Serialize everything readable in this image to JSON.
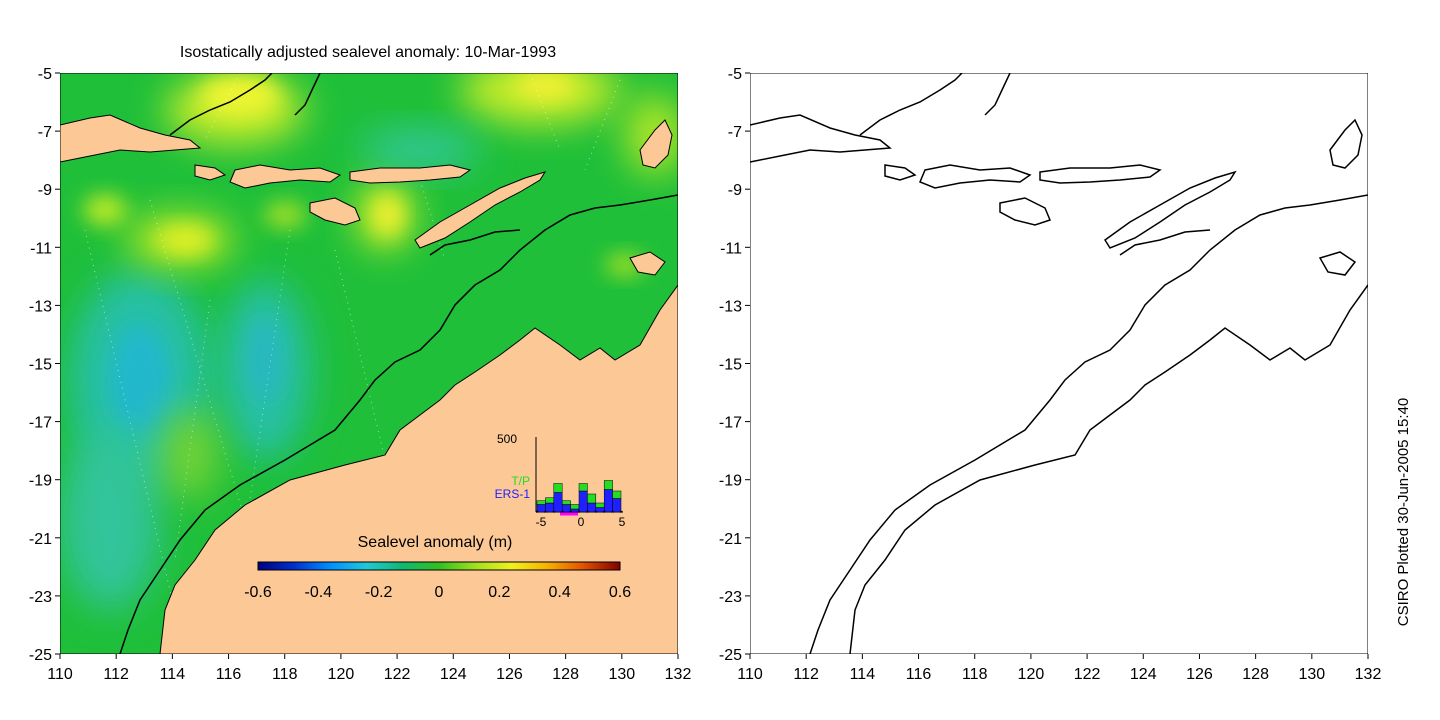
{
  "title": "Isostatically adjusted sealevel anomaly: 10-Mar-1993",
  "credit": "CSIRO Plotted 30-Jun-2005 15:40",
  "map": {
    "lon_range": [
      110,
      132
    ],
    "lat_range": [
      -25,
      -5
    ],
    "x_ticks": [
      "110",
      "112",
      "114",
      "116",
      "118",
      "120",
      "122",
      "124",
      "126",
      "128",
      "130",
      "132"
    ],
    "y_ticks": [
      "-5",
      "-7",
      "-9",
      "-11",
      "-13",
      "-15",
      "-17",
      "-19",
      "-21",
      "-23",
      "-25"
    ],
    "colors": {
      "land": "#fcc896",
      "ocean_base": "#1fbf3a",
      "coast": "#000000"
    }
  },
  "colorbar": {
    "label": "Sealevel anomaly (m)",
    "ticks": [
      "-0.6",
      "-0.4",
      "-0.2",
      "0",
      "0.2",
      "0.4",
      "0.6"
    ],
    "stops": [
      "#000080",
      "#0030d0",
      "#0090ff",
      "#20c8d8",
      "#10b870",
      "#30c020",
      "#a0e020",
      "#f0f020",
      "#f8b000",
      "#e05000",
      "#800000"
    ]
  },
  "histogram": {
    "ymax_label": "500",
    "x_ticks": [
      "-5",
      "0",
      "5"
    ],
    "series": [
      {
        "name": "T/P",
        "color": "#22dd22"
      },
      {
        "name": "ERS-1",
        "color": "#2020ff"
      }
    ],
    "bars": [
      {
        "day": -5,
        "tp": 0.05,
        "ers": 0.1
      },
      {
        "day": -4,
        "tp": 0.07,
        "ers": 0.12
      },
      {
        "day": -3,
        "tp": 0.12,
        "ers": 0.26
      },
      {
        "day": -2,
        "tp": 0.05,
        "ers": 0.1
      },
      {
        "day": -1,
        "tp": 0.06,
        "ers": 0.04
      },
      {
        "day": 0,
        "tp": 0.1,
        "ers": 0.28
      },
      {
        "day": 1,
        "tp": 0.12,
        "ers": 0.12
      },
      {
        "day": 2,
        "tp": 0.06,
        "ers": 0.06
      },
      {
        "day": 3,
        "tp": 0.12,
        "ers": 0.3
      },
      {
        "day": 4,
        "tp": 0.1,
        "ers": 0.18
      }
    ]
  }
}
